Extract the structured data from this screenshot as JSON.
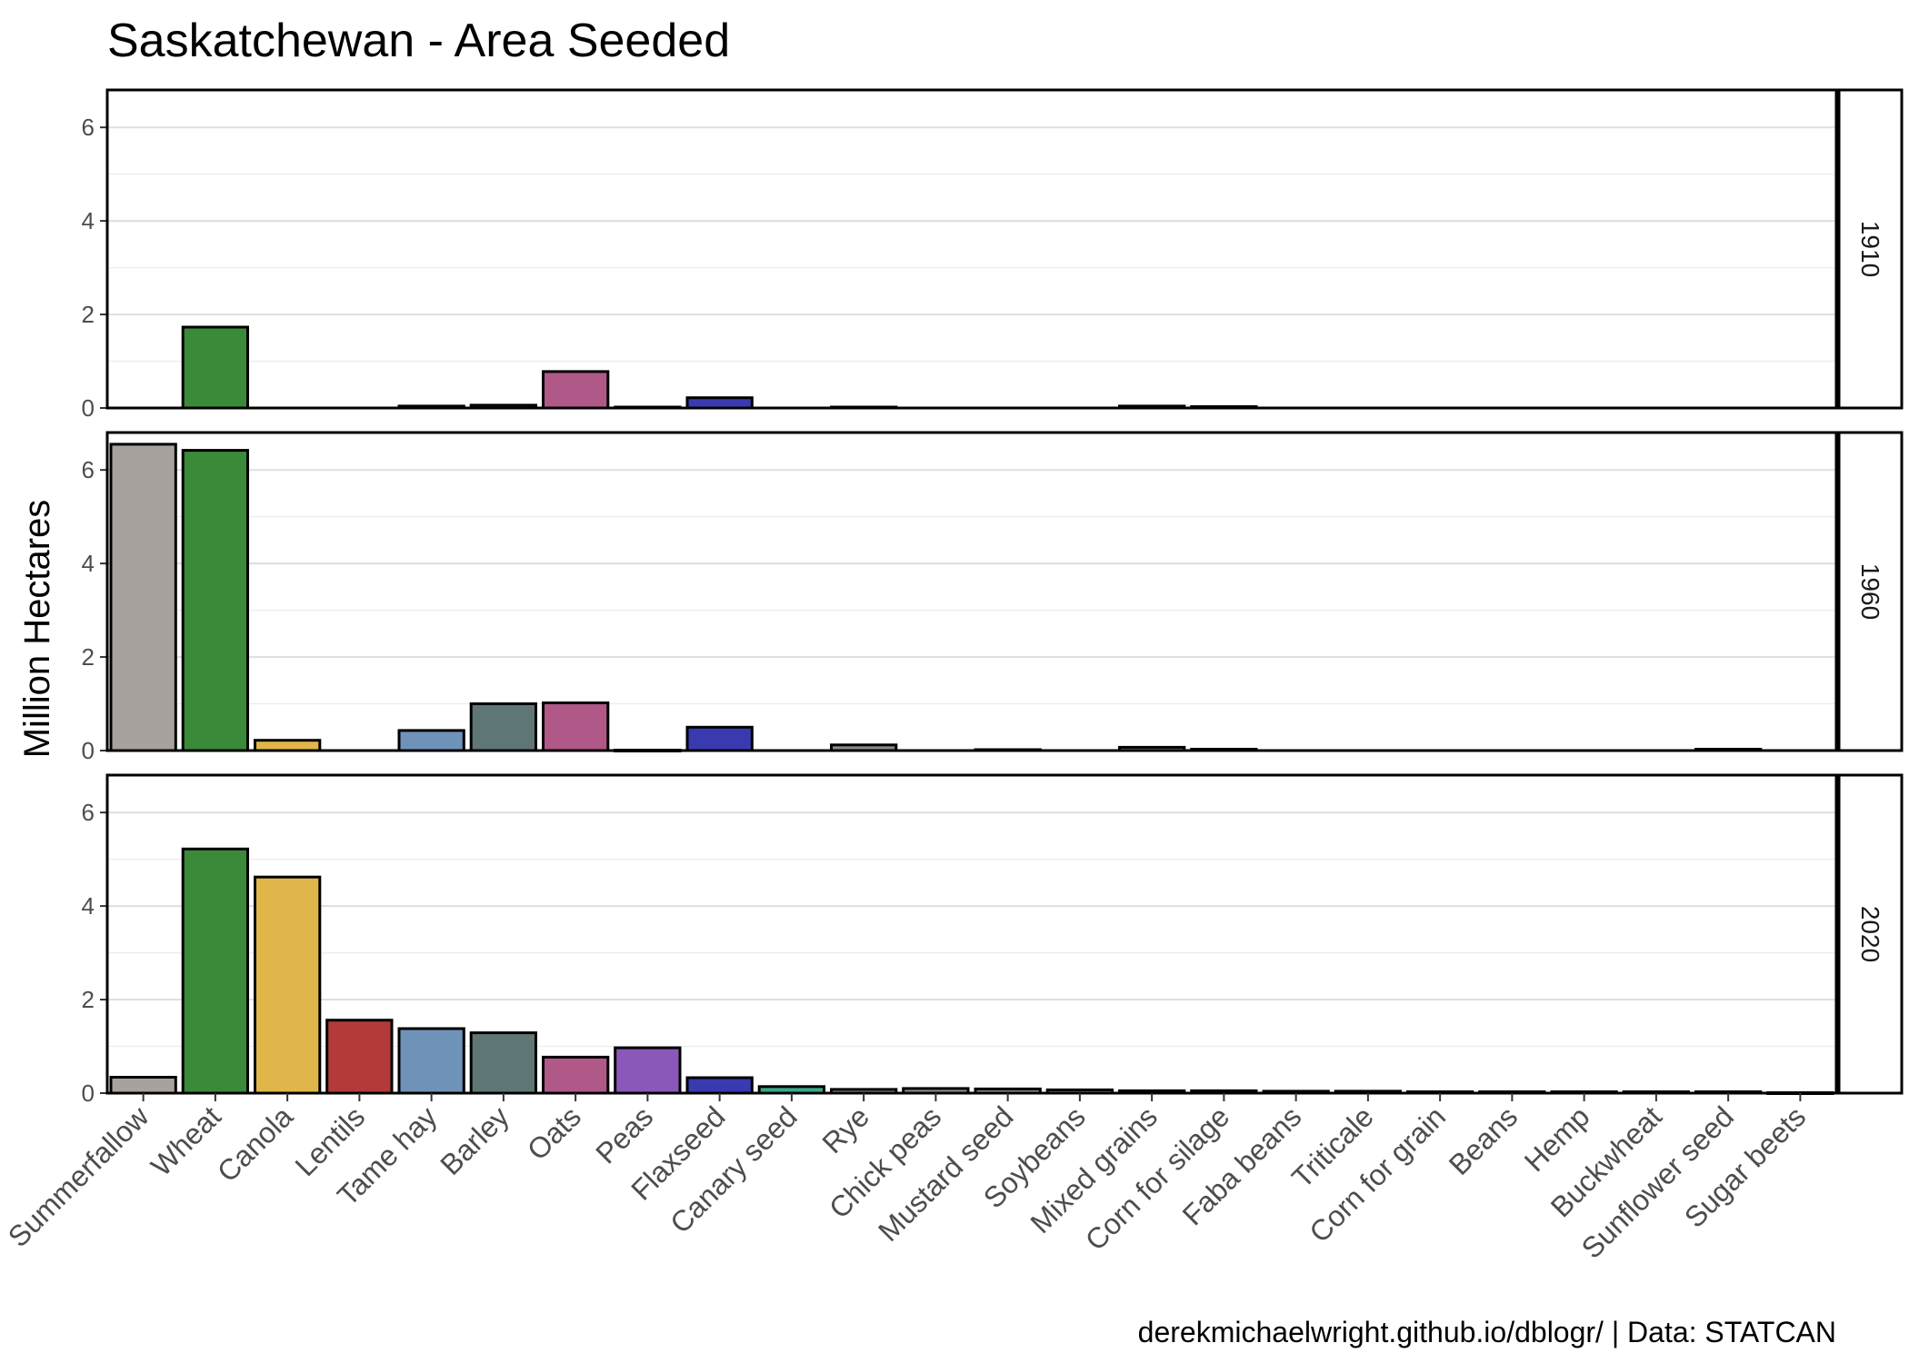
{
  "chart_data": {
    "type": "bar",
    "title": "Saskatchewan - Area Seeded",
    "ylabel": "Million Hectares",
    "xlabel": "",
    "caption": "derekmichaelwright.github.io/dblogr/ | Data: STATCAN",
    "ylim": [
      0,
      6.8
    ],
    "yticks": [
      0,
      2,
      4,
      6
    ],
    "grid": true,
    "legend": "none",
    "categories": [
      "Summerfallow",
      "Wheat",
      "Canola",
      "Lentils",
      "Tame hay",
      "Barley",
      "Oats",
      "Peas",
      "Flaxseed",
      "Canary seed",
      "Rye",
      "Chick peas",
      "Mustard seed",
      "Soybeans",
      "Mixed grains",
      "Corn for silage",
      "Faba beans",
      "Triticale",
      "Corn for grain",
      "Beans",
      "Hemp",
      "Buckwheat",
      "Sunflower seed",
      "Sugar beets"
    ],
    "colors": [
      "#a8a29e",
      "#3a8a3a",
      "#e0b64a",
      "#b23a3a",
      "#6f93b8",
      "#5f7676",
      "#b05887",
      "#8a58b8",
      "#3a3ab0",
      "#3aa88a",
      "#8a8a8a",
      "#8a8a8a",
      "#8a8a8a",
      "#8a8a8a",
      "#8a8a8a",
      "#8a8a8a",
      "#8a8a8a",
      "#8a8a8a",
      "#8a8a8a",
      "#8a8a8a",
      "#8a8a8a",
      "#8a8a8a",
      "#8a8a8a",
      "#8a8a8a"
    ],
    "series": [
      {
        "name": "1910",
        "values": [
          null,
          1.73,
          null,
          null,
          0.04,
          0.06,
          0.78,
          0.02,
          0.22,
          null,
          0.02,
          null,
          null,
          null,
          0.04,
          0.03,
          null,
          null,
          null,
          null,
          null,
          null,
          null,
          null
        ]
      },
      {
        "name": "1960",
        "values": [
          6.55,
          6.42,
          0.22,
          null,
          0.43,
          1.0,
          1.02,
          0.01,
          0.5,
          null,
          0.12,
          null,
          0.02,
          null,
          0.07,
          0.03,
          null,
          null,
          null,
          null,
          null,
          null,
          0.03,
          null
        ]
      },
      {
        "name": "2020",
        "values": [
          0.34,
          5.22,
          4.62,
          1.56,
          1.38,
          1.29,
          0.77,
          0.97,
          0.33,
          0.14,
          0.08,
          0.1,
          0.09,
          0.07,
          0.05,
          0.05,
          0.04,
          0.04,
          0.03,
          0.03,
          0.03,
          0.03,
          0.03,
          0.01
        ]
      }
    ]
  }
}
